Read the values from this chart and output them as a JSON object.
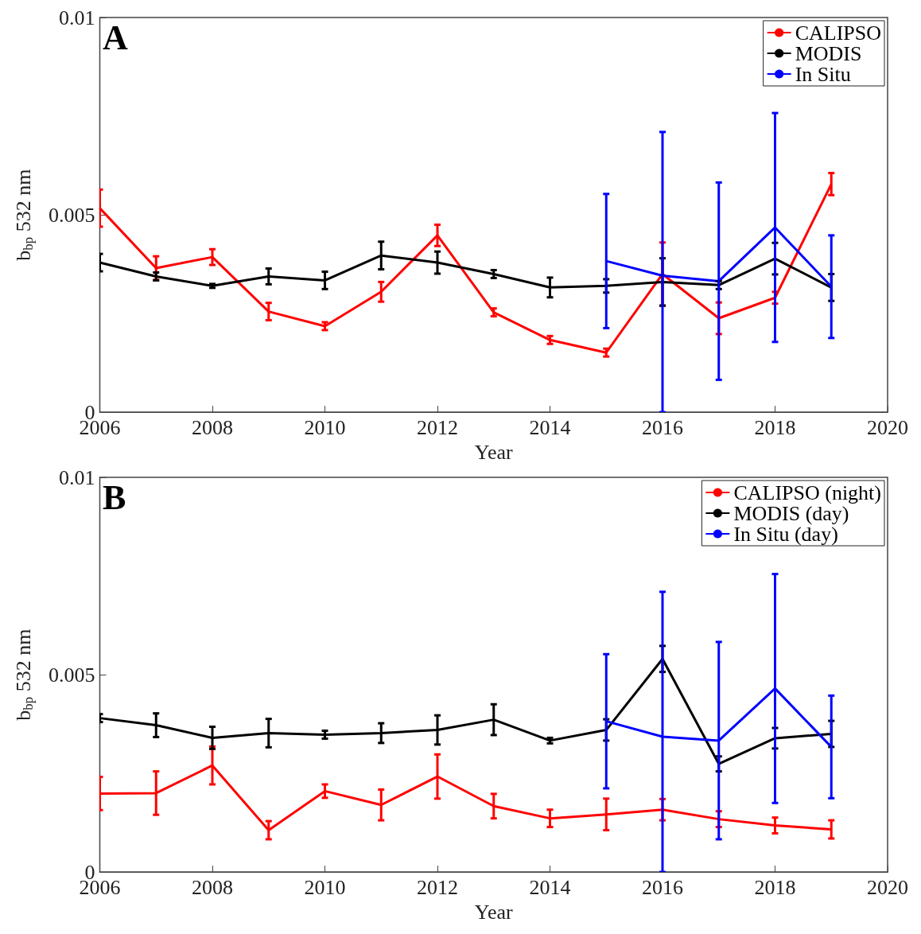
{
  "chart_data": [
    {
      "type": "line",
      "title": "A",
      "xlabel": "Year",
      "ylabel": "b$_{bp}$ 532 nm",
      "x": [
        2006,
        2007,
        2008,
        2009,
        2010,
        2011,
        2012,
        2013,
        2014,
        2015,
        2016,
        2017,
        2018,
        2019
      ],
      "xlim": [
        2006,
        2020
      ],
      "xticks": [
        2006,
        2008,
        2010,
        2012,
        2014,
        2016,
        2018,
        2020
      ],
      "ylim": [
        0,
        0.01
      ],
      "yticks": [
        0,
        0.005,
        0.01
      ],
      "legend": "top right",
      "grid": false,
      "series": [
        {
          "name": "CALIPSO",
          "color": "#ff0000",
          "values": [
            0.00517,
            0.00365,
            0.00393,
            0.00255,
            0.00218,
            0.00305,
            0.00448,
            0.00253,
            0.00183,
            0.00151,
            0.0035,
            0.00238,
            0.0029,
            0.00578
          ],
          "errors": [
            0.00047,
            0.0003,
            0.0002,
            0.00022,
            0.0001,
            0.00025,
            0.00027,
            0.0001,
            0.0001,
            0.0001,
            0.0008,
            0.0004,
            0.00015,
            0.00028
          ]
        },
        {
          "name": "MODIS",
          "color": "#000000",
          "values": [
            0.00379,
            0.00344,
            0.0032,
            0.00344,
            0.00334,
            0.00397,
            0.00379,
            0.0035,
            0.00316,
            0.0032,
            0.0033,
            0.00322,
            0.00389,
            0.00316
          ],
          "errors": [
            0.00022,
            0.0001,
            5e-05,
            0.0002,
            0.00022,
            0.00035,
            0.00028,
            0.0001,
            0.00025,
            0.00017,
            0.0006,
            0.0001,
            0.0004,
            0.00034
          ]
        },
        {
          "name": "In Situ",
          "color": "#0000ff",
          "x": [
            2015,
            2016,
            2017,
            2018,
            2019
          ],
          "values": [
            0.00383,
            0.00346,
            0.00332,
            0.00468,
            0.00318
          ],
          "errors": [
            0.0017,
            [
              0,
              0.0071
            ],
            0.0025,
            0.0029,
            0.0013
          ]
        }
      ]
    },
    {
      "type": "line",
      "title": "B",
      "xlabel": "Year",
      "ylabel": "b$_{bp}$ 532 nm",
      "x": [
        2006,
        2007,
        2008,
        2009,
        2010,
        2011,
        2012,
        2013,
        2014,
        2015,
        2016,
        2017,
        2018,
        2019
      ],
      "xlim": [
        2006,
        2020
      ],
      "xticks": [
        2006,
        2008,
        2010,
        2012,
        2014,
        2016,
        2018,
        2020
      ],
      "ylim": [
        0,
        0.01
      ],
      "yticks": [
        0,
        0.005,
        0.01
      ],
      "legend": "top right",
      "grid": false,
      "series": [
        {
          "name": "CALIPSO (night)",
          "color": "#ff0000",
          "values": [
            0.00199,
            0.002,
            0.0027,
            0.00106,
            0.00205,
            0.0017,
            0.00242,
            0.00167,
            0.00136,
            0.00146,
            0.00158,
            0.00134,
            0.00118,
            0.00108
          ],
          "errors": [
            0.00042,
            0.00055,
            0.00048,
            0.00023,
            0.00017,
            0.00039,
            0.00056,
            0.00031,
            0.00022,
            0.0004,
            0.00027,
            0.0002,
            0.0002,
            0.00023
          ]
        },
        {
          "name": "MODIS (day)",
          "color": "#000000",
          "values": [
            0.0039,
            0.00372,
            0.0034,
            0.00352,
            0.00348,
            0.00352,
            0.0036,
            0.00386,
            0.00333,
            0.0036,
            0.0054,
            0.00274,
            0.00339,
            0.0035
          ],
          "errors": [
            0.0001,
            0.0003,
            0.00028,
            0.00036,
            0.0001,
            0.00025,
            0.00037,
            0.00039,
            7e-05,
            0.00027,
            0.00033,
            0.00019,
            0.00026,
            0.00033
          ]
        },
        {
          "name": "In Situ (day)",
          "color": "#0000ff",
          "x": [
            2015,
            2016,
            2017,
            2018,
            2019
          ],
          "values": [
            0.00382,
            0.00343,
            0.00333,
            0.00465,
            0.00317
          ],
          "errors": [
            0.0017,
            [
              0,
              0.0071
            ],
            0.0025,
            0.0029,
            0.0013
          ]
        }
      ]
    }
  ]
}
